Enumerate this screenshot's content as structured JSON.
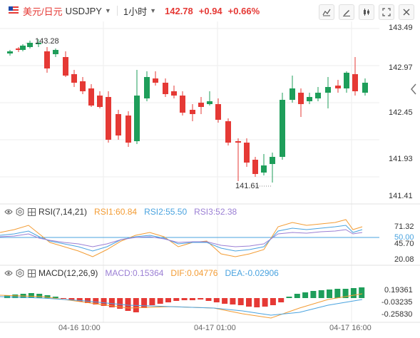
{
  "header": {
    "symbol_cn": "美元/日元",
    "symbol_code": "USDJPY",
    "timeframe": "1小时",
    "price": "142.78",
    "change": "+0.94",
    "change_pct": "+0.66%"
  },
  "price_axis": [
    "143.49",
    "142.97",
    "142.45",
    "141.93",
    "141.41"
  ],
  "annotations": {
    "high": "143.28",
    "low": "141.61"
  },
  "rsi": {
    "title": "RSI(7,14,21)",
    "rsi1": "RSI1:60.84",
    "rsi2": "RSI2:55.50",
    "rsi3": "RSI3:52.38",
    "axis": [
      "71.32",
      "50.00",
      "45.70",
      "20.08"
    ]
  },
  "macd": {
    "title": "MACD(12,26,9)",
    "macd": "MACD:0.15364",
    "dif": "DIF:0.04776",
    "dea": "DEA:-0.02906",
    "axis": [
      "0.19361",
      "-0.03235",
      "-0.25830"
    ]
  },
  "time_axis": [
    "04-16 10:00",
    "04-17 01:00",
    "04-17 16:00"
  ],
  "colors": {
    "up": "#e53935",
    "down": "#1e9e5a",
    "rsi1": "#f39c34",
    "rsi2": "#4aa3df",
    "rsi3": "#9b7fd4",
    "dif": "#f39c34",
    "dea": "#4aa3df"
  },
  "icons": [
    "flag-icon",
    "eye-icon",
    "gear-icon",
    "fullscreen-icon",
    "draw-icon",
    "candle-type-icon",
    "expand-icon",
    "close-icon",
    "arrow-left-icon"
  ]
}
